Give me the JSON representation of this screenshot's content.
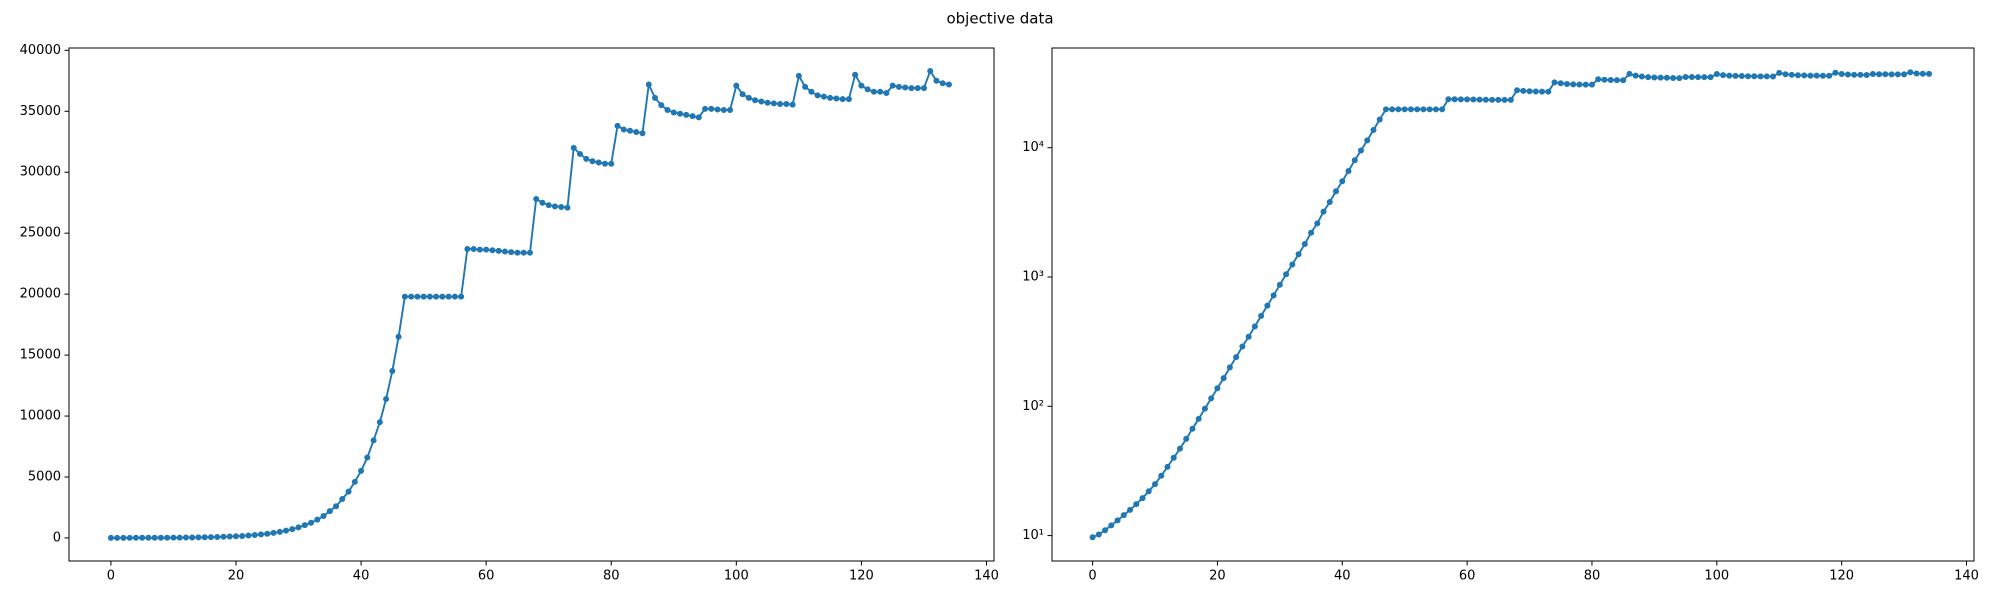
{
  "title": "objective data",
  "chart_data": [
    {
      "type": "line",
      "color": "#1f77b4",
      "log_y": false,
      "x": [
        0,
        1,
        2,
        3,
        4,
        5,
        6,
        7,
        8,
        9,
        10,
        11,
        12,
        13,
        14,
        15,
        16,
        17,
        18,
        19,
        20,
        21,
        22,
        23,
        24,
        25,
        26,
        27,
        28,
        29,
        30,
        31,
        32,
        33,
        34,
        35,
        36,
        37,
        38,
        39,
        40,
        41,
        42,
        43,
        44,
        45,
        46,
        47,
        48,
        49,
        50,
        51,
        52,
        53,
        54,
        55,
        56,
        57,
        58,
        59,
        60,
        61,
        62,
        63,
        64,
        65,
        66,
        67,
        68,
        69,
        70,
        71,
        72,
        73,
        74,
        75,
        76,
        77,
        78,
        79,
        80,
        81,
        82,
        83,
        84,
        85,
        86,
        87,
        88,
        89,
        90,
        91,
        92,
        93,
        94,
        95,
        96,
        97,
        98,
        99,
        100,
        101,
        102,
        103,
        104,
        105,
        106,
        107,
        108,
        109,
        110,
        111,
        112,
        113,
        114,
        115,
        116,
        117,
        118,
        119,
        120,
        121,
        122,
        123,
        124,
        125,
        126,
        127,
        128,
        129,
        130,
        131,
        132,
        133,
        134
      ],
      "values": [
        9.7,
        10.2,
        11,
        12,
        13.1,
        14.4,
        15.8,
        17.5,
        19.5,
        22,
        25,
        29,
        34,
        40,
        47,
        56,
        67,
        80,
        96,
        115,
        138,
        165,
        200,
        240,
        290,
        345,
        415,
        500,
        600,
        720,
        870,
        1050,
        1250,
        1500,
        1800,
        2200,
        2600,
        3200,
        3800,
        4600,
        5500,
        6600,
        8000,
        9500,
        11400,
        13700,
        16500,
        19800,
        19800,
        19800,
        19800,
        19800,
        19800,
        19800,
        19800,
        19800,
        19800,
        23700,
        23700,
        23650,
        23650,
        23600,
        23550,
        23500,
        23450,
        23400,
        23400,
        23400,
        27800,
        27500,
        27300,
        27200,
        27150,
        27100,
        32000,
        31500,
        31100,
        30900,
        30800,
        30700,
        30700,
        33800,
        33500,
        33400,
        33300,
        33200,
        37200,
        36100,
        35500,
        35100,
        34900,
        34800,
        34700,
        34600,
        34500,
        35200,
        35200,
        35150,
        35100,
        35100,
        37100,
        36400,
        36100,
        35900,
        35800,
        35700,
        35650,
        35600,
        35600,
        35550,
        37900,
        37000,
        36600,
        36300,
        36200,
        36100,
        36050,
        36000,
        36000,
        38000,
        37100,
        36800,
        36600,
        36600,
        36500,
        37100,
        37000,
        36950,
        36900,
        36900,
        36900,
        38300,
        37500,
        37300,
        37200
      ],
      "xlim": [
        -6.7,
        141.2
      ],
      "xticks": [
        0,
        20,
        40,
        60,
        80,
        100,
        120,
        140
      ],
      "ylim": [
        -1890,
        40190
      ],
      "yticks": [
        0,
        5000,
        10000,
        15000,
        20000,
        25000,
        30000,
        35000,
        40000
      ]
    },
    {
      "type": "line",
      "color": "#1f77b4",
      "log_y": true,
      "x": [
        0,
        1,
        2,
        3,
        4,
        5,
        6,
        7,
        8,
        9,
        10,
        11,
        12,
        13,
        14,
        15,
        16,
        17,
        18,
        19,
        20,
        21,
        22,
        23,
        24,
        25,
        26,
        27,
        28,
        29,
        30,
        31,
        32,
        33,
        34,
        35,
        36,
        37,
        38,
        39,
        40,
        41,
        42,
        43,
        44,
        45,
        46,
        47,
        48,
        49,
        50,
        51,
        52,
        53,
        54,
        55,
        56,
        57,
        58,
        59,
        60,
        61,
        62,
        63,
        64,
        65,
        66,
        67,
        68,
        69,
        70,
        71,
        72,
        73,
        74,
        75,
        76,
        77,
        78,
        79,
        80,
        81,
        82,
        83,
        84,
        85,
        86,
        87,
        88,
        89,
        90,
        91,
        92,
        93,
        94,
        95,
        96,
        97,
        98,
        99,
        100,
        101,
        102,
        103,
        104,
        105,
        106,
        107,
        108,
        109,
        110,
        111,
        112,
        113,
        114,
        115,
        116,
        117,
        118,
        119,
        120,
        121,
        122,
        123,
        124,
        125,
        126,
        127,
        128,
        129,
        130,
        131,
        132,
        133,
        134
      ],
      "values": [
        9.7,
        10.2,
        11,
        12,
        13.1,
        14.4,
        15.8,
        17.5,
        19.5,
        22,
        25,
        29,
        34,
        40,
        47,
        56,
        67,
        80,
        96,
        115,
        138,
        165,
        200,
        240,
        290,
        345,
        415,
        500,
        600,
        720,
        870,
        1050,
        1250,
        1500,
        1800,
        2200,
        2600,
        3200,
        3800,
        4600,
        5500,
        6600,
        8000,
        9500,
        11400,
        13700,
        16500,
        19800,
        19800,
        19800,
        19800,
        19800,
        19800,
        19800,
        19800,
        19800,
        19800,
        23700,
        23700,
        23650,
        23650,
        23600,
        23550,
        23500,
        23450,
        23400,
        23400,
        23400,
        27800,
        27500,
        27300,
        27200,
        27150,
        27100,
        32000,
        31500,
        31100,
        30900,
        30800,
        30700,
        30700,
        33800,
        33500,
        33400,
        33300,
        33200,
        37200,
        36100,
        35500,
        35100,
        34900,
        34800,
        34700,
        34600,
        34500,
        35200,
        35200,
        35150,
        35100,
        35100,
        37100,
        36400,
        36100,
        35900,
        35800,
        35700,
        35650,
        35600,
        35600,
        35550,
        37900,
        37000,
        36600,
        36300,
        36200,
        36100,
        36050,
        36000,
        36000,
        38000,
        37100,
        36800,
        36600,
        36600,
        36500,
        37100,
        37000,
        36950,
        36900,
        36900,
        36900,
        38300,
        37500,
        37300,
        37200
      ],
      "xlim": [
        -6.5,
        141.2
      ],
      "xticks": [
        0,
        20,
        40,
        60,
        80,
        100,
        120,
        140
      ],
      "ylim": [
        6.36,
        59000
      ],
      "yticks": [
        {
          "value": 10,
          "label": "10¹"
        },
        {
          "value": 100,
          "label": "10²"
        },
        {
          "value": 1000,
          "label": "10³"
        },
        {
          "value": 10000,
          "label": "10⁴"
        }
      ]
    }
  ]
}
